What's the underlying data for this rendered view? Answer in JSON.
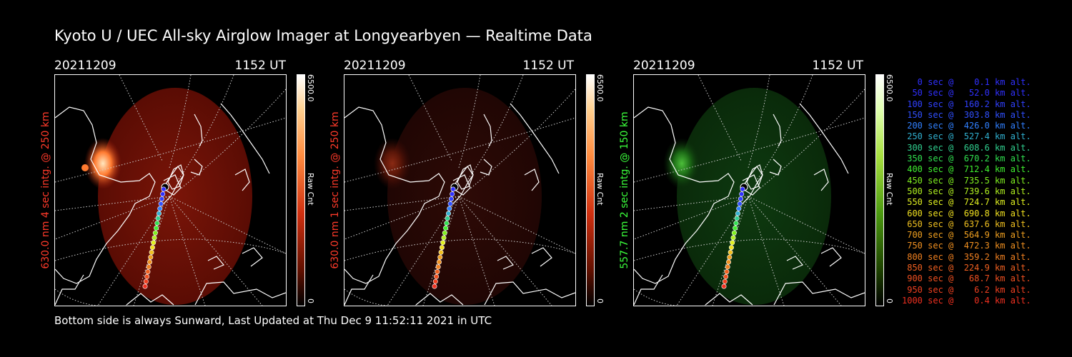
{
  "title": "Kyoto U / UEC All-sky Airglow Imager at Longyearbyen — Realtime Data",
  "footer": "Bottom side is always Sunward, Last Updated at Thu Dec  9 11:52:11 2021 in UTC",
  "panels": [
    {
      "date": "20211209",
      "time": "1152 UT",
      "ylabel": "630.0 nm 4 sec intg. @ 250 km",
      "cbar_max": "6500.0",
      "cbar_min": "0",
      "cbar_unit": "Raw Cnt",
      "label_color": "#ff3a2a",
      "glow": "red"
    },
    {
      "date": "20211209",
      "time": "1152 UT",
      "ylabel": "630.0 nm 1 sec intg. @ 250 km",
      "cbar_max": "6500.0",
      "cbar_min": "0",
      "cbar_unit": "Raw Cnt",
      "label_color": "#ff3a2a",
      "glow": "dimred"
    },
    {
      "date": "20211209",
      "time": "1152 UT",
      "ylabel": "557.7 nm 2 sec intg. @ 150 km",
      "cbar_max": "6500.0",
      "cbar_min": "0",
      "cbar_unit": "Raw Cnt",
      "label_color": "#3cff3c",
      "glow": "green"
    }
  ],
  "trajectory": [
    {
      "label": "   0 sec @    0.1 km alt.",
      "color": "#3030ff"
    },
    {
      "label": "  50 sec @   52.0 km alt.",
      "color": "#3030ff"
    },
    {
      "label": " 100 sec @  160.2 km alt.",
      "color": "#3040ff"
    },
    {
      "label": " 150 sec @  303.8 km alt.",
      "color": "#3050ff"
    },
    {
      "label": " 200 sec @  426.0 km alt.",
      "color": "#3080ff"
    },
    {
      "label": " 250 sec @  527.4 km alt.",
      "color": "#30b0d0"
    },
    {
      "label": " 300 sec @  608.6 km alt.",
      "color": "#30d090"
    },
    {
      "label": " 350 sec @  670.2 km alt.",
      "color": "#30e050"
    },
    {
      "label": " 400 sec @  712.4 km alt.",
      "color": "#40f030"
    },
    {
      "label": " 450 sec @  735.5 km alt.",
      "color": "#80f020"
    },
    {
      "label": " 500 sec @  739.6 km alt.",
      "color": "#b0f020"
    },
    {
      "label": " 550 sec @  724.7 km alt.",
      "color": "#e0f020"
    },
    {
      "label": " 600 sec @  690.8 km alt.",
      "color": "#f0e020"
    },
    {
      "label": " 650 sec @  637.6 km alt.",
      "color": "#f0c020"
    },
    {
      "label": " 700 sec @  564.9 km alt.",
      "color": "#f0a020"
    },
    {
      "label": " 750 sec @  472.3 km alt.",
      "color": "#f09020"
    },
    {
      "label": " 800 sec @  359.2 km alt.",
      "color": "#f08020"
    },
    {
      "label": " 850 sec @  224.9 km alt.",
      "color": "#f06020"
    },
    {
      "label": " 900 sec @   68.7 km alt.",
      "color": "#f05020"
    },
    {
      "label": " 950 sec @    6.2 km alt.",
      "color": "#f04020"
    },
    {
      "label": "1000 sec @    0.4 km alt.",
      "color": "#f03020"
    }
  ]
}
